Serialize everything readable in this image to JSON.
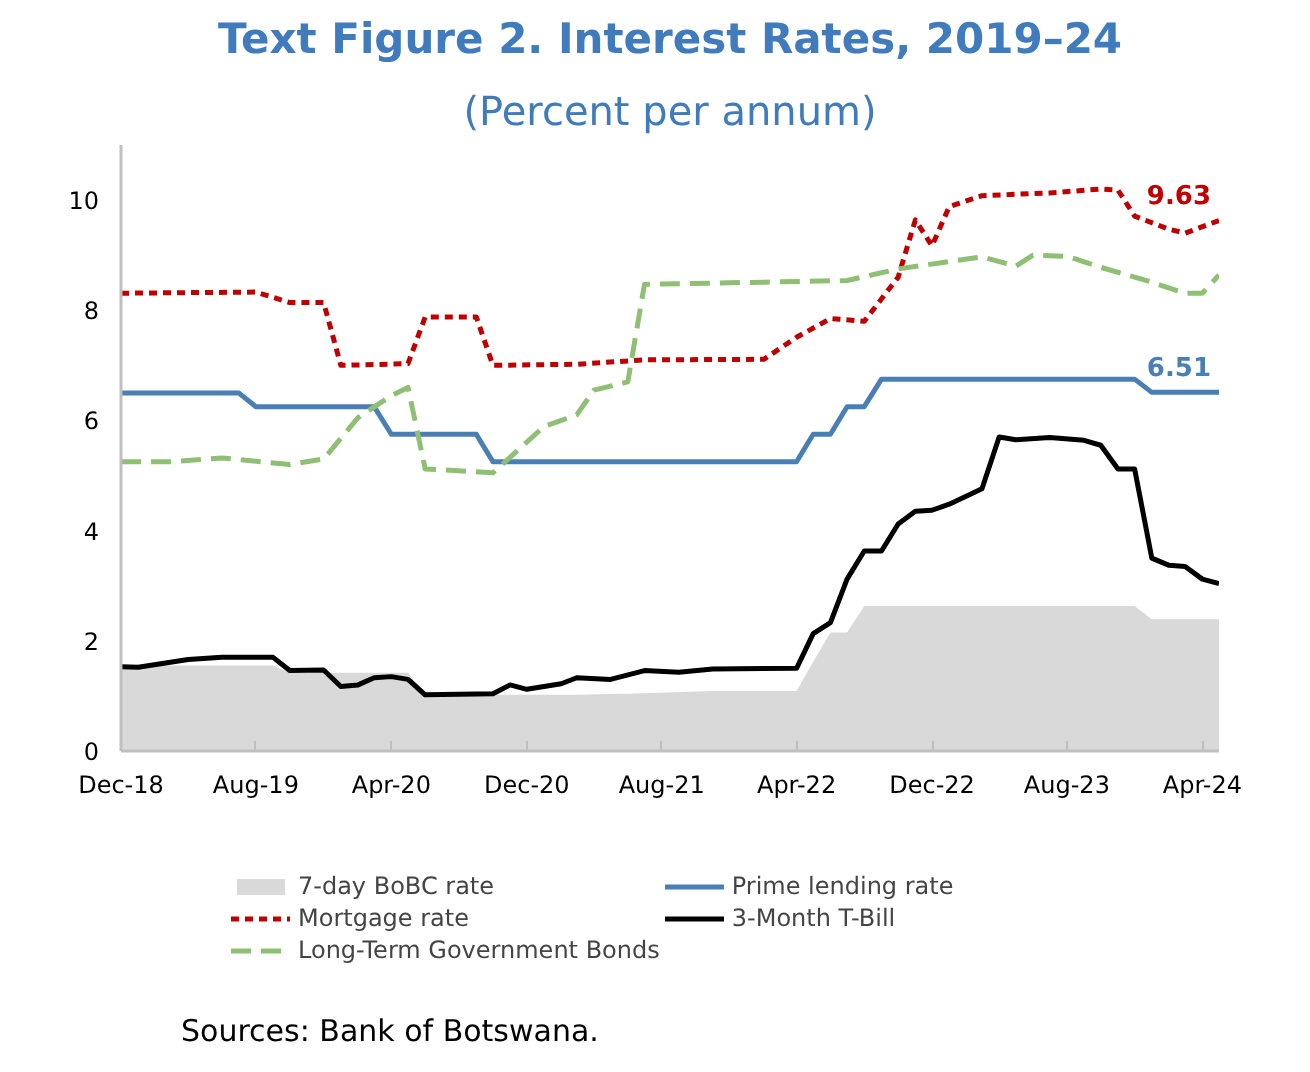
{
  "chart_data": {
    "type": "line",
    "title": "Text Figure 2. Interest Rates, 2019–24",
    "subtitle": "(Percent per annum)",
    "xlim": [
      "2018-12",
      "2024-05"
    ],
    "xticks": [
      {
        "value": "2018-12",
        "label": "Dec-18"
      },
      {
        "value": "2019-08",
        "label": "Aug-19"
      },
      {
        "value": "2020-04",
        "label": "Apr-20"
      },
      {
        "value": "2020-12",
        "label": "Dec-20"
      },
      {
        "value": "2021-08",
        "label": "Aug-21"
      },
      {
        "value": "2022-04",
        "label": "Apr-22"
      },
      {
        "value": "2022-12",
        "label": "Dec-22"
      },
      {
        "value": "2023-08",
        "label": "Aug-23"
      },
      {
        "value": "2024-04",
        "label": "Apr-24"
      }
    ],
    "ylim": [
      0,
      11
    ],
    "yticks": [
      0,
      2,
      4,
      6,
      8,
      10
    ],
    "grid": false,
    "legend": "bottom",
    "series": [
      {
        "name": "7-day BoBC rate",
        "type": "area",
        "color": "#d9d9d9",
        "x": [
          "2018-12",
          "2019-09",
          "2019-10",
          "2020-05",
          "2020-06",
          "2021-03",
          "2021-07",
          "2021-11",
          "2022-04",
          "2022-05",
          "2022-06",
          "2022-07",
          "2022-08",
          "2023-12",
          "2024-01",
          "2024-05"
        ],
        "values": [
          1.55,
          1.55,
          1.42,
          1.42,
          1.02,
          1.02,
          1.05,
          1.09,
          1.09,
          1.62,
          2.15,
          2.15,
          2.63,
          2.63,
          2.39,
          2.39
        ]
      },
      {
        "name": "Prime lending rate",
        "line_style": "solid",
        "color": "#4a7fb5",
        "x": [
          "2018-12",
          "2019-07",
          "2019-08",
          "2020-03",
          "2020-04",
          "2020-09",
          "2020-10",
          "2022-04",
          "2022-05",
          "2022-06",
          "2022-07",
          "2022-08",
          "2022-09",
          "2023-12",
          "2024-01",
          "2024-05"
        ],
        "values": [
          6.5,
          6.5,
          6.25,
          6.25,
          5.75,
          5.75,
          5.25,
          5.25,
          5.75,
          5.75,
          6.25,
          6.25,
          6.75,
          6.75,
          6.51,
          6.51
        ]
      },
      {
        "name": "Mortgage rate",
        "line_style": "dotted",
        "color": "#c00000",
        "x": [
          "2018-12",
          "2019-08",
          "2019-10",
          "2019-12",
          "2020-01",
          "2020-05",
          "2020-06",
          "2020-09",
          "2020-10",
          "2021-03",
          "2021-07",
          "2022-02",
          "2022-04",
          "2022-06",
          "2022-08",
          "2022-10",
          "2022-11",
          "2022-12",
          "2023-01",
          "2023-03",
          "2023-07",
          "2023-10",
          "2023-11",
          "2023-12",
          "2024-02",
          "2024-03",
          "2024-05"
        ],
        "values": [
          8.31,
          8.33,
          8.14,
          8.14,
          7.0,
          7.03,
          7.88,
          7.88,
          7.0,
          7.02,
          7.1,
          7.11,
          7.51,
          7.85,
          7.8,
          8.6,
          9.64,
          9.17,
          9.88,
          10.08,
          10.13,
          10.2,
          10.18,
          9.71,
          9.47,
          9.4,
          9.63
        ]
      },
      {
        "name": "3-Month T-Bill",
        "line_style": "solid",
        "color": "#000000",
        "x": [
          "2018-12",
          "2019-01",
          "2019-04",
          "2019-06",
          "2019-09",
          "2019-10",
          "2019-12",
          "2020-01",
          "2020-02",
          "2020-03",
          "2020-04",
          "2020-05",
          "2020-06",
          "2020-10",
          "2020-11",
          "2020-12",
          "2021-02",
          "2021-03",
          "2021-05",
          "2021-07",
          "2021-09",
          "2021-11",
          "2022-04",
          "2022-05",
          "2022-06",
          "2022-07",
          "2022-08",
          "2022-09",
          "2022-10",
          "2022-11",
          "2022-12",
          "2023-01",
          "2023-03",
          "2023-04",
          "2023-05",
          "2023-07",
          "2023-09",
          "2023-10",
          "2023-11",
          "2023-12",
          "2024-01",
          "2024-02",
          "2024-03",
          "2024-04",
          "2024-05"
        ],
        "values": [
          1.53,
          1.52,
          1.66,
          1.7,
          1.7,
          1.46,
          1.47,
          1.17,
          1.2,
          1.33,
          1.35,
          1.3,
          1.02,
          1.04,
          1.2,
          1.12,
          1.22,
          1.33,
          1.3,
          1.46,
          1.43,
          1.49,
          1.5,
          2.13,
          2.33,
          3.12,
          3.63,
          3.63,
          4.12,
          4.35,
          4.37,
          4.48,
          4.76,
          5.7,
          5.65,
          5.69,
          5.64,
          5.55,
          5.12,
          5.12,
          3.5,
          3.37,
          3.35,
          3.12,
          3.04
        ]
      },
      {
        "name": "Long-Term Government Bonds",
        "line_style": "dashed",
        "color": "#8fbf73",
        "x": [
          "2018-12",
          "2019-03",
          "2019-06",
          "2019-10",
          "2019-12",
          "2020-02",
          "2020-04",
          "2020-05",
          "2020-06",
          "2020-10",
          "2021-01",
          "2021-03",
          "2021-04",
          "2021-06",
          "2021-07",
          "2022-02",
          "2022-07",
          "2022-10",
          "2023-03",
          "2023-05",
          "2023-06",
          "2023-08",
          "2023-10",
          "2024-01",
          "2024-03",
          "2024-04",
          "2024-05"
        ],
        "values": [
          5.25,
          5.25,
          5.32,
          5.2,
          5.3,
          6.05,
          6.45,
          6.6,
          5.12,
          5.05,
          5.89,
          6.1,
          6.55,
          6.7,
          8.47,
          8.51,
          8.54,
          8.75,
          8.97,
          8.8,
          9.0,
          8.98,
          8.78,
          8.51,
          8.31,
          8.31,
          8.64
        ]
      }
    ],
    "annotations": [
      {
        "text": "9.63",
        "x": "2024-05",
        "y": 9.63
      },
      {
        "text": "6.51",
        "x": "2024-05",
        "y": 6.51
      },
      "Sources: Bank of Botswana."
    ]
  }
}
